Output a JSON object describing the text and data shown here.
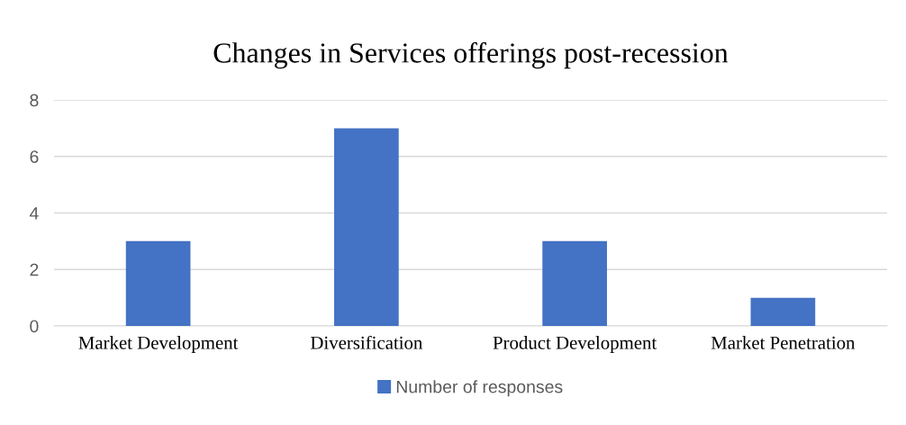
{
  "chart_data": {
    "type": "bar",
    "title": "Changes in Services offerings post-recession",
    "categories": [
      "Market Development",
      "Diversification",
      "Product Development",
      "Market Penetration"
    ],
    "series": [
      {
        "name": "Number of responses",
        "color": "#4472c4",
        "values": [
          3,
          7,
          3,
          1
        ]
      }
    ],
    "ylim": [
      0,
      8
    ],
    "yticks": [
      0,
      2,
      4,
      6,
      8
    ],
    "grid": "y",
    "legend": "bottom"
  }
}
